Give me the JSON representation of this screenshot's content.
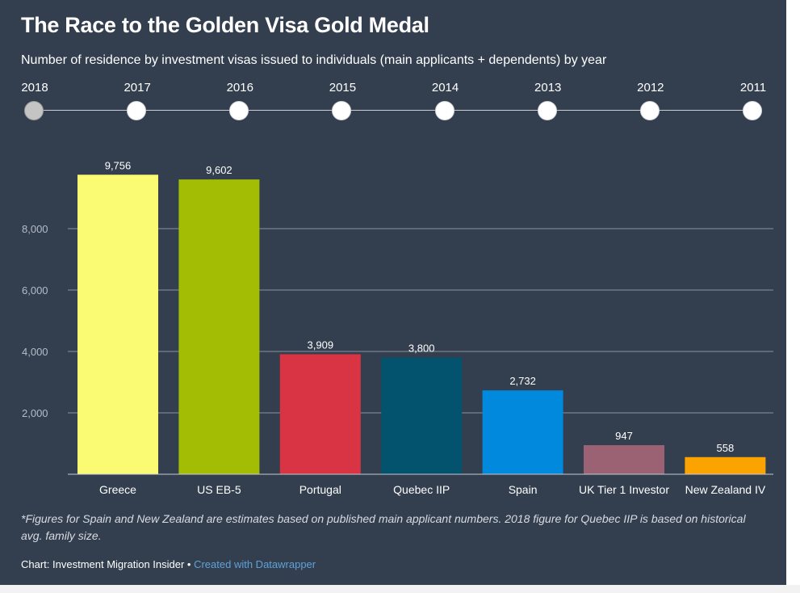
{
  "title": "The Race to the Golden Visa Gold Medal",
  "subtitle": "Number of residence by investment visas issued to individuals (main applicants + dependents) by year",
  "timeline": {
    "years": [
      "2018",
      "2017",
      "2016",
      "2015",
      "2014",
      "2013",
      "2012",
      "2011"
    ],
    "selected": "2018"
  },
  "chart_data": {
    "type": "bar",
    "categories": [
      "Greece",
      "US EB-5",
      "Portugal",
      "Quebec IIP",
      "Spain",
      "UK Tier 1 Investor",
      "New Zealand IV"
    ],
    "values": [
      9756,
      9602,
      3909,
      3800,
      2732,
      947,
      558
    ],
    "value_labels": [
      "9,756",
      "9,602",
      "3,909",
      "3,800",
      "2,732",
      "947",
      "558"
    ],
    "colors": [
      "#fbfa73",
      "#a3bc04",
      "#d93444",
      "#03536f",
      "#0189dd",
      "#9b6273",
      "#fba300"
    ],
    "yticks": [
      2000,
      4000,
      6000,
      8000
    ],
    "ytick_labels": [
      "2,000",
      "4,000",
      "6,000",
      "8,000"
    ],
    "ylim": [
      0,
      10000
    ],
    "grid": true,
    "title": "The Race to the Golden Visa Gold Medal",
    "xlabel": "",
    "ylabel": ""
  },
  "footnote": "*Figures for Spain and New Zealand are estimates based on published main applicant numbers. 2018 figure for Quebec IIP is based on historical avg. family size.",
  "credit": {
    "text": "Chart: Investment Migration Insider",
    "separator": " • ",
    "link": "Created with Datawrapper"
  }
}
